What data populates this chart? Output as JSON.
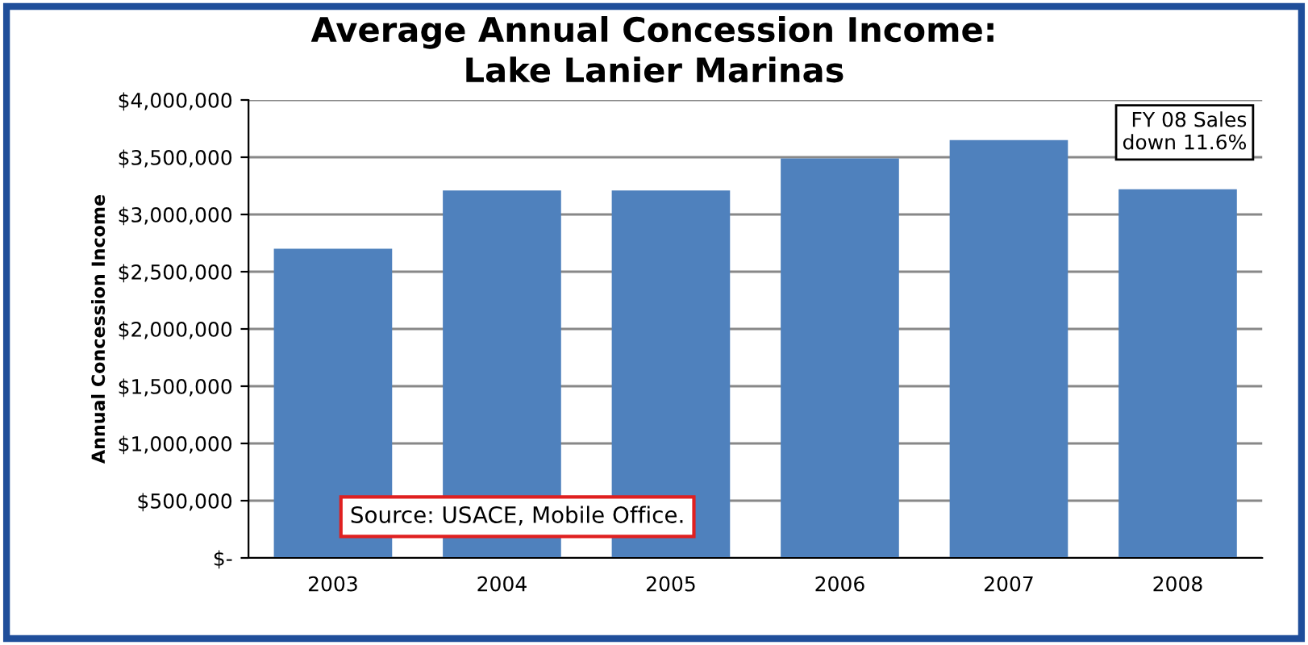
{
  "chart_data": {
    "type": "bar",
    "title": "Average Annual Concession Income:\nLake Lanier Marinas",
    "ylabel": "Annual Concession Income",
    "categories": [
      "2003",
      "2004",
      "2005",
      "2006",
      "2007",
      "2008"
    ],
    "values": [
      2700000,
      3210000,
      3210000,
      3490000,
      3650000,
      3220000
    ],
    "color": "#4f81bd",
    "ylim": [
      0,
      4000000
    ],
    "yticks": [
      {
        "value": 0,
        "label": "$-"
      },
      {
        "value": 500000,
        "label": "$500,000"
      },
      {
        "value": 1000000,
        "label": "$1,000,000"
      },
      {
        "value": 1500000,
        "label": "$1,500,000"
      },
      {
        "value": 2000000,
        "label": "$2,000,000"
      },
      {
        "value": 2500000,
        "label": "$2,500,000"
      },
      {
        "value": 3000000,
        "label": "$3,000,000"
      },
      {
        "value": 3500000,
        "label": "$3,500,000"
      },
      {
        "value": 4000000,
        "label": "$4,000,000"
      }
    ],
    "grid": "y",
    "annotations": [
      "Source: USACE, Mobile Office.",
      "FY 08 Sales\ndown 11.6%"
    ]
  }
}
